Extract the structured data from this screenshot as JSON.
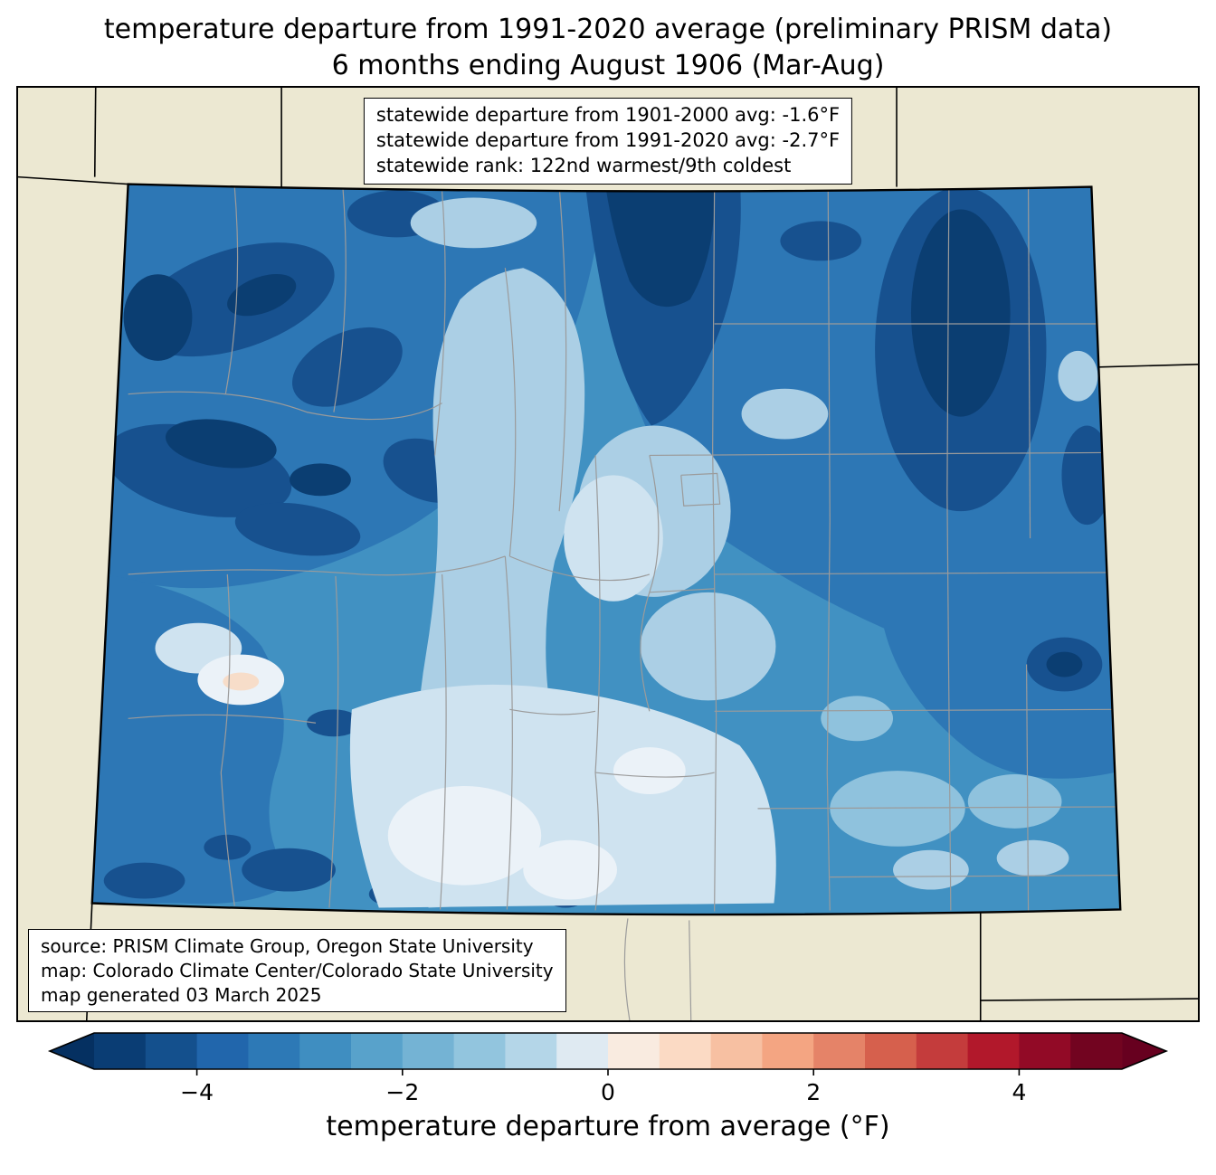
{
  "title": {
    "line1": "temperature departure from 1991-2020 average (preliminary PRISM data)",
    "line2": "6 months ending August 1906 (Mar-Aug)"
  },
  "stats_box": {
    "lines": [
      "statewide departure from 1901-2000 avg: -1.6°F",
      "statewide departure from 1991-2020 avg: -2.7°F",
      "statewide rank: 122nd warmest/9th coldest"
    ]
  },
  "source_box": {
    "lines": [
      "source: PRISM Climate Group, Oregon State University",
      "map: Colorado Climate Center/Colorado State University",
      "map generated 03 March 2025"
    ]
  },
  "colorbar": {
    "label": "temperature departure from average (°F)",
    "min": -5,
    "max": 5,
    "tick_values": [
      -4,
      -2,
      0,
      2,
      4
    ],
    "tick_labels": [
      "−4",
      "−2",
      "0",
      "2",
      "4"
    ],
    "segment_colors": [
      "#0a3d74",
      "#14508d",
      "#2166ac",
      "#2d79b6",
      "#3f8ec1",
      "#58a2cb",
      "#74b3d4",
      "#92c5de",
      "#b4d6e8",
      "#dfeaf2",
      "#f9ebe0",
      "#fbdac4",
      "#f7c0a2",
      "#f4a582",
      "#e58368",
      "#d6604d",
      "#c43c3c",
      "#b2182b",
      "#920a26",
      "#720420"
    ],
    "under_color": "#053061",
    "over_color": "#67001f"
  },
  "map": {
    "region": "Colorado",
    "palette": {
      "beige": "#ece8d2",
      "ink": "#000000",
      "county": "#9b9b9b",
      "blue-base": "#4191c2",
      "blue-middark": "#2d77b5",
      "navy": "#17518f",
      "deep-navy": "#0b3e72",
      "light": "#abcfe5",
      "lighter": "#cfe3f0",
      "pale": "#ebf2f8",
      "peach": "#f7ddc9",
      "light-mid": "#8fc2dd"
    }
  }
}
